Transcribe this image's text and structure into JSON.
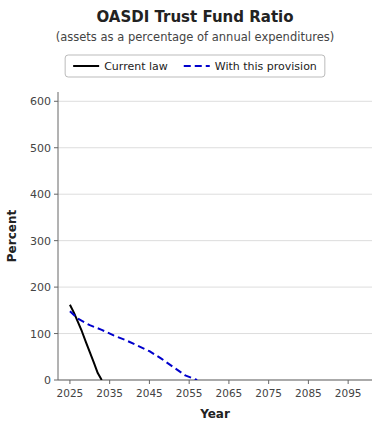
{
  "chart_data": {
    "type": "line",
    "title": "OASDI  Trust Fund Ratio",
    "subtitle": "(assets as a percentage of annual expenditures)",
    "xlabel": "Year",
    "ylabel": "Percent",
    "xlim": [
      2022,
      2101
    ],
    "ylim": [
      0,
      620
    ],
    "xticks": [
      2025,
      2035,
      2045,
      2055,
      2065,
      2075,
      2085,
      2095
    ],
    "yticks": [
      0,
      100,
      200,
      300,
      400,
      500,
      600
    ],
    "grid": true,
    "legend": "top",
    "series": [
      {
        "name": "Current law",
        "color": "#000000",
        "line_style": "solid",
        "x": [
          2025,
          2026,
          2027,
          2028,
          2029,
          2030,
          2031,
          2032,
          2033
        ],
        "values": [
          162,
          145,
          125,
          105,
          82,
          60,
          38,
          15,
          0
        ]
      },
      {
        "name": "With this provision",
        "color": "#0000cc",
        "line_style": "dashed",
        "x": [
          2025,
          2027,
          2030,
          2033,
          2036,
          2039,
          2042,
          2045,
          2048,
          2051,
          2054,
          2057
        ],
        "values": [
          148,
          132,
          118,
          108,
          96,
          86,
          74,
          62,
          46,
          28,
          10,
          0
        ]
      }
    ]
  }
}
